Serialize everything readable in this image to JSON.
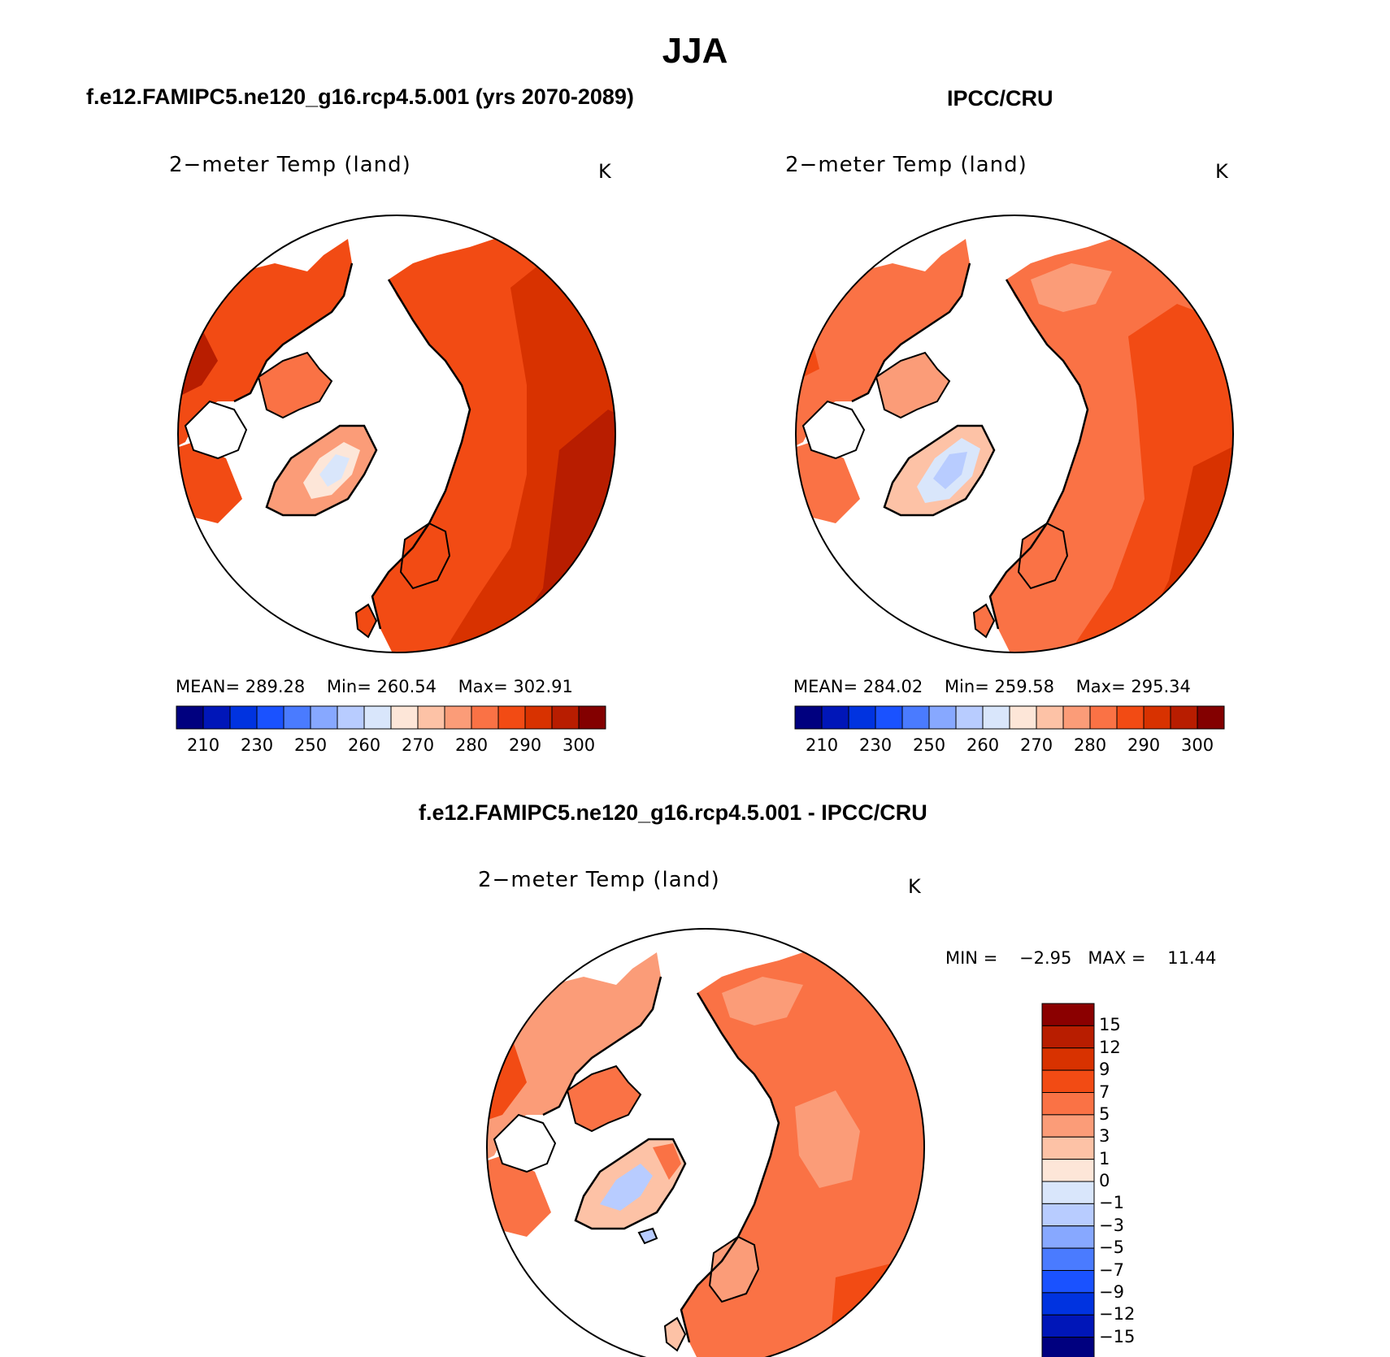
{
  "figure_title": "JJA",
  "panels": [
    {
      "title": "f.e12.FAMIPC5.ne120_g16.rcp4.5.001 (yrs 2070-2089)",
      "variable": "2−meter Temp (land)",
      "units": "K",
      "stats": {
        "mean_label": "MEAN=",
        "mean": "289.28",
        "min_label": "Min=",
        "min": "260.54",
        "max_label": "Max=",
        "max": "302.91"
      }
    },
    {
      "title": "IPCC/CRU",
      "variable": "2−meter Temp (land)",
      "units": "K",
      "stats": {
        "mean_label": "MEAN=",
        "mean": "284.02",
        "min_label": "Min=",
        "min": "259.58",
        "max_label": "Max=",
        "max": "295.34"
      }
    },
    {
      "title": "f.e12.FAMIPC5.ne120_g16.rcp4.5.001 - IPCC/CRU",
      "variable": "2−meter Temp (land)",
      "units": "K",
      "stats": {
        "min_label": "MIN =",
        "min": "−2.95",
        "max_label": "MAX =",
        "max": "11.44"
      }
    }
  ],
  "abs_colorbar": {
    "ticks": [
      "210",
      "230",
      "250",
      "260",
      "270",
      "280",
      "290",
      "300"
    ],
    "colors": [
      "#00007f",
      "#0016b8",
      "#0033e0",
      "#1a52ff",
      "#4a7bff",
      "#87a8ff",
      "#b8ccff",
      "#d9e6fb",
      "#fde6d8",
      "#fdc2a6",
      "#fb9c78",
      "#fa7245",
      "#f24b14",
      "#d83200",
      "#b81d00",
      "#830000"
    ]
  },
  "diff_colorbar": {
    "labels": [
      "15",
      "12",
      "9",
      "7",
      "5",
      "3",
      "1",
      "0",
      "−1",
      "−3",
      "−5",
      "−7",
      "−9",
      "−12",
      "−15"
    ],
    "colors": [
      "#8b0000",
      "#b81d00",
      "#d83200",
      "#f24b14",
      "#fa7245",
      "#fb9c78",
      "#fdc2a6",
      "#fde6d8",
      "#d9e6fb",
      "#b8ccff",
      "#87a8ff",
      "#4a7bff",
      "#1a52ff",
      "#0033e0",
      "#0016b8",
      "#00007f"
    ]
  },
  "chart_data": [
    {
      "type": "heatmap",
      "title": "2-meter Temp (land)",
      "projection": "north polar stereographic",
      "units": "K",
      "mean": 289.28,
      "min": 260.54,
      "max": 302.91,
      "contour_levels": [
        210,
        220,
        230,
        240,
        250,
        255,
        260,
        265,
        270,
        275,
        280,
        285,
        290,
        295,
        300
      ]
    },
    {
      "type": "heatmap",
      "title": "2-meter Temp (land)",
      "projection": "north polar stereographic",
      "units": "K",
      "mean": 284.02,
      "min": 259.58,
      "max": 295.34,
      "contour_levels": [
        210,
        220,
        230,
        240,
        250,
        255,
        260,
        265,
        270,
        275,
        280,
        285,
        290,
        295,
        300
      ]
    },
    {
      "type": "heatmap",
      "title": "2-meter Temp (land) difference",
      "projection": "north polar stereographic",
      "units": "K",
      "min": -2.95,
      "max": 11.44,
      "contour_levels": [
        -15,
        -12,
        -9,
        -7,
        -5,
        -3,
        -1,
        0,
        1,
        3,
        5,
        7,
        9,
        12,
        15
      ]
    }
  ]
}
